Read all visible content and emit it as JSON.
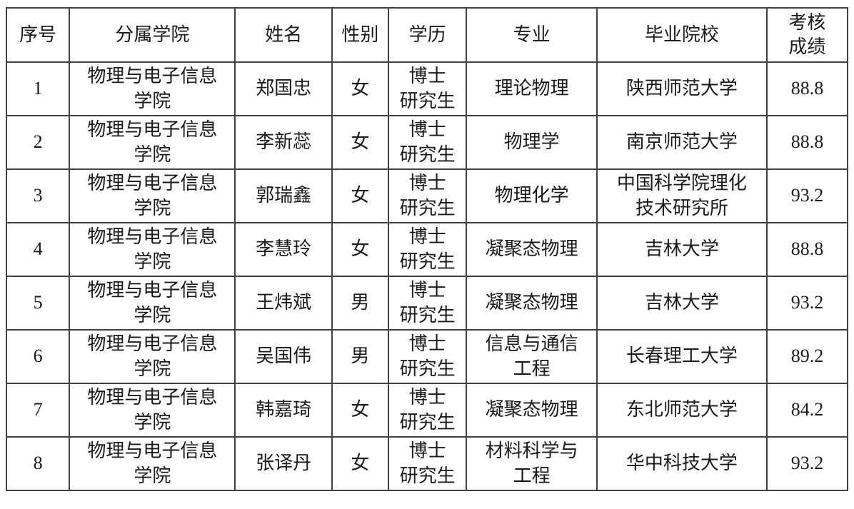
{
  "table": {
    "columns": [
      {
        "key": "index",
        "label": "序号"
      },
      {
        "key": "college",
        "label": "分属学院"
      },
      {
        "key": "name",
        "label": "姓名"
      },
      {
        "key": "gender",
        "label": "性别"
      },
      {
        "key": "education",
        "label": "学历"
      },
      {
        "key": "major",
        "label": "专业"
      },
      {
        "key": "university",
        "label": "毕业院校"
      },
      {
        "key": "score",
        "label": "考核\n成绩"
      }
    ],
    "rows": [
      [
        "1",
        "物理与电子信息\n学院",
        "郑国忠",
        "女",
        "博士\n研究生",
        "理论物理",
        "陕西师范大学",
        "88.8"
      ],
      [
        "2",
        "物理与电子信息\n学院",
        "李新蕊",
        "女",
        "博士\n研究生",
        "物理学",
        "南京师范大学",
        "88.8"
      ],
      [
        "3",
        "物理与电子信息\n学院",
        "郭瑞鑫",
        "女",
        "博士\n研究生",
        "物理化学",
        "中国科学院理化\n技术研究所",
        "93.2"
      ],
      [
        "4",
        "物理与电子信息\n学院",
        "李慧玲",
        "女",
        "博士\n研究生",
        "凝聚态物理",
        "吉林大学",
        "88.8"
      ],
      [
        "5",
        "物理与电子信息\n学院",
        "王炜斌",
        "男",
        "博士\n研究生",
        "凝聚态物理",
        "吉林大学",
        "93.2"
      ],
      [
        "6",
        "物理与电子信息\n学院",
        "吴国伟",
        "男",
        "博士\n研究生",
        "信息与通信\n工程",
        "长春理工大学",
        "89.2"
      ],
      [
        "7",
        "物理与电子信息\n学院",
        "韩嘉琦",
        "女",
        "博士\n研究生",
        "凝聚态物理",
        "东北师范大学",
        "84.2"
      ],
      [
        "8",
        "物理与电子信息\n学院",
        "张译丹",
        "女",
        "博士\n研究生",
        "材料科学与\n工程",
        "华中科技大学",
        "93.2"
      ]
    ]
  },
  "colors": {
    "border": "#404040",
    "text": "#1a1a1a",
    "background": "#ffffff"
  }
}
